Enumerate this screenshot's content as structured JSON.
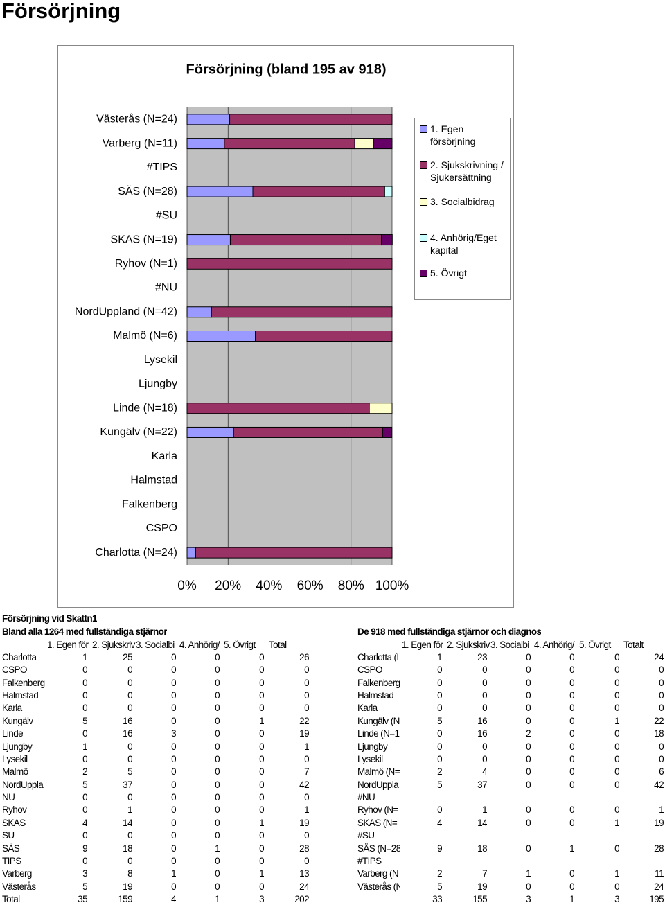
{
  "page_title": "Försörjning",
  "chart_data": {
    "type": "bar",
    "orientation": "horizontal",
    "stacked": true,
    "title": "Försörjning (bland 195 av 918)",
    "categories": [
      "Charlotta (N=24)",
      "CSPO",
      "Falkenberg",
      "Halmstad",
      "Karla",
      "Kungälv (N=22)",
      "Linde (N=18)",
      "Ljungby",
      "Lysekil",
      "Malmö (N=6)",
      "NordUppland (N=42)",
      "#NU",
      "Ryhov (N=1)",
      "SKAS (N=19)",
      "#SU",
      "SÄS (N=28)",
      "#TIPS",
      "Varberg (N=11)",
      "Västerås (N=24)"
    ],
    "series": [
      {
        "name": "1. Egen försörjning",
        "color": "#9999ff",
        "values": [
          4.2,
          null,
          null,
          null,
          null,
          22.7,
          0,
          null,
          null,
          33.3,
          11.9,
          null,
          0,
          21.1,
          null,
          32.1,
          null,
          18.2,
          20.8
        ]
      },
      {
        "name": "2. Sjukskrivning / Sjukersättning",
        "color": "#993366",
        "values": [
          95.8,
          null,
          null,
          null,
          null,
          72.7,
          88.9,
          null,
          null,
          66.7,
          88.1,
          null,
          100,
          73.7,
          null,
          64.3,
          null,
          63.6,
          79.2
        ]
      },
      {
        "name": "3. Socialbidrag",
        "color": "#ffffcc",
        "values": [
          0,
          null,
          null,
          null,
          null,
          0,
          11.1,
          null,
          null,
          0,
          0,
          null,
          0,
          0,
          null,
          0,
          null,
          9.1,
          0
        ]
      },
      {
        "name": "4. Anhörig/Eget kapital",
        "color": "#ccffff",
        "values": [
          0,
          null,
          null,
          null,
          null,
          0,
          0,
          null,
          null,
          0,
          0,
          null,
          0,
          0,
          null,
          3.6,
          null,
          0,
          0
        ]
      },
      {
        "name": "5. Övrigt",
        "color": "#660066",
        "values": [
          0,
          null,
          null,
          null,
          null,
          4.5,
          0,
          null,
          null,
          0,
          0,
          null,
          0,
          5.3,
          null,
          0,
          null,
          9.1,
          0
        ]
      }
    ],
    "xlim": [
      0,
      100
    ],
    "xticks": [
      {
        "value": 0,
        "label": "0%"
      },
      {
        "value": 20,
        "label": "20%"
      },
      {
        "value": 40,
        "label": "40%"
      },
      {
        "value": 60,
        "label": "60%"
      },
      {
        "value": 80,
        "label": "80%"
      },
      {
        "value": 100,
        "label": "100%"
      }
    ],
    "grid": true,
    "legend": "right"
  },
  "table1": {
    "title": "Försörjning vid Skattn1",
    "subtitle": "Bland alla 1264 med fullständiga stjärnor",
    "headers": [
      "1. Egen för",
      "2. Sjukskriv",
      "3. Socialbi",
      "4. Anhörig/",
      "5. Övrigt",
      "Total"
    ],
    "rows": [
      {
        "label": "Charlotta",
        "values": [
          1,
          25,
          0,
          0,
          0,
          26
        ]
      },
      {
        "label": "CSPO",
        "values": [
          0,
          0,
          0,
          0,
          0,
          0
        ]
      },
      {
        "label": "Falkenberg",
        "values": [
          0,
          0,
          0,
          0,
          0,
          0
        ]
      },
      {
        "label": "Halmstad",
        "values": [
          0,
          0,
          0,
          0,
          0,
          0
        ]
      },
      {
        "label": "Karla",
        "values": [
          0,
          0,
          0,
          0,
          0,
          0
        ]
      },
      {
        "label": "Kungälv",
        "values": [
          5,
          16,
          0,
          0,
          1,
          22
        ]
      },
      {
        "label": "Linde",
        "values": [
          0,
          16,
          3,
          0,
          0,
          19
        ]
      },
      {
        "label": "Ljungby",
        "values": [
          1,
          0,
          0,
          0,
          0,
          1
        ]
      },
      {
        "label": "Lysekil",
        "values": [
          0,
          0,
          0,
          0,
          0,
          0
        ]
      },
      {
        "label": "Malmö",
        "values": [
          2,
          5,
          0,
          0,
          0,
          7
        ]
      },
      {
        "label": "NordUppla",
        "values": [
          5,
          37,
          0,
          0,
          0,
          42
        ]
      },
      {
        "label": "NU",
        "values": [
          0,
          0,
          0,
          0,
          0,
          0
        ]
      },
      {
        "label": "Ryhov",
        "values": [
          0,
          1,
          0,
          0,
          0,
          1
        ]
      },
      {
        "label": "SKAS",
        "values": [
          4,
          14,
          0,
          0,
          1,
          19
        ]
      },
      {
        "label": "SU",
        "values": [
          0,
          0,
          0,
          0,
          0,
          0
        ]
      },
      {
        "label": "SÄS",
        "values": [
          9,
          18,
          0,
          1,
          0,
          28
        ]
      },
      {
        "label": "TIPS",
        "values": [
          0,
          0,
          0,
          0,
          0,
          0
        ]
      },
      {
        "label": "Varberg",
        "values": [
          3,
          8,
          1,
          0,
          1,
          13
        ]
      },
      {
        "label": "Västerås",
        "values": [
          5,
          19,
          0,
          0,
          0,
          24
        ]
      },
      {
        "label": "Total",
        "values": [
          35,
          159,
          4,
          1,
          3,
          202
        ]
      }
    ]
  },
  "table2": {
    "title": "De 918 med fullständiga stjärnor och diagnos",
    "headers": [
      "1. Egen för",
      "2. Sjukskriv",
      "3. Socialbi",
      "4. Anhörig/",
      "5. Övrigt",
      "Totalt"
    ],
    "rows": [
      {
        "label": "Charlotta (I",
        "values": [
          1,
          23,
          0,
          0,
          0,
          24
        ]
      },
      {
        "label": "CSPO",
        "values": [
          0,
          0,
          0,
          0,
          0,
          0
        ]
      },
      {
        "label": "Falkenberg",
        "values": [
          0,
          0,
          0,
          0,
          0,
          0
        ]
      },
      {
        "label": "Halmstad",
        "values": [
          0,
          0,
          0,
          0,
          0,
          0
        ]
      },
      {
        "label": "Karla",
        "values": [
          0,
          0,
          0,
          0,
          0,
          0
        ]
      },
      {
        "label": "Kungälv (N",
        "values": [
          5,
          16,
          0,
          0,
          1,
          22
        ]
      },
      {
        "label": "Linde (N=1",
        "values": [
          0,
          16,
          2,
          0,
          0,
          18
        ]
      },
      {
        "label": "Ljungby",
        "values": [
          0,
          0,
          0,
          0,
          0,
          0
        ]
      },
      {
        "label": "Lysekil",
        "values": [
          0,
          0,
          0,
          0,
          0,
          0
        ]
      },
      {
        "label": "Malmö (N=",
        "values": [
          2,
          4,
          0,
          0,
          0,
          6
        ]
      },
      {
        "label": "NordUppla",
        "values": [
          5,
          37,
          0,
          0,
          0,
          42
        ]
      },
      {
        "label": "#NU",
        "values": []
      },
      {
        "label": "Ryhov (N=",
        "values": [
          0,
          1,
          0,
          0,
          0,
          1
        ]
      },
      {
        "label": "SKAS (N=",
        "values": [
          4,
          14,
          0,
          0,
          1,
          19
        ]
      },
      {
        "label": "#SU",
        "values": []
      },
      {
        "label": "SÄS (N=28",
        "values": [
          9,
          18,
          0,
          1,
          0,
          28
        ]
      },
      {
        "label": "#TIPS",
        "values": []
      },
      {
        "label": "Varberg (N",
        "values": [
          2,
          7,
          1,
          0,
          1,
          11
        ]
      },
      {
        "label": "Västerås (N",
        "values": [
          5,
          19,
          0,
          0,
          0,
          24
        ]
      },
      {
        "values": [
          33,
          155,
          3,
          1,
          3,
          195
        ]
      }
    ]
  }
}
